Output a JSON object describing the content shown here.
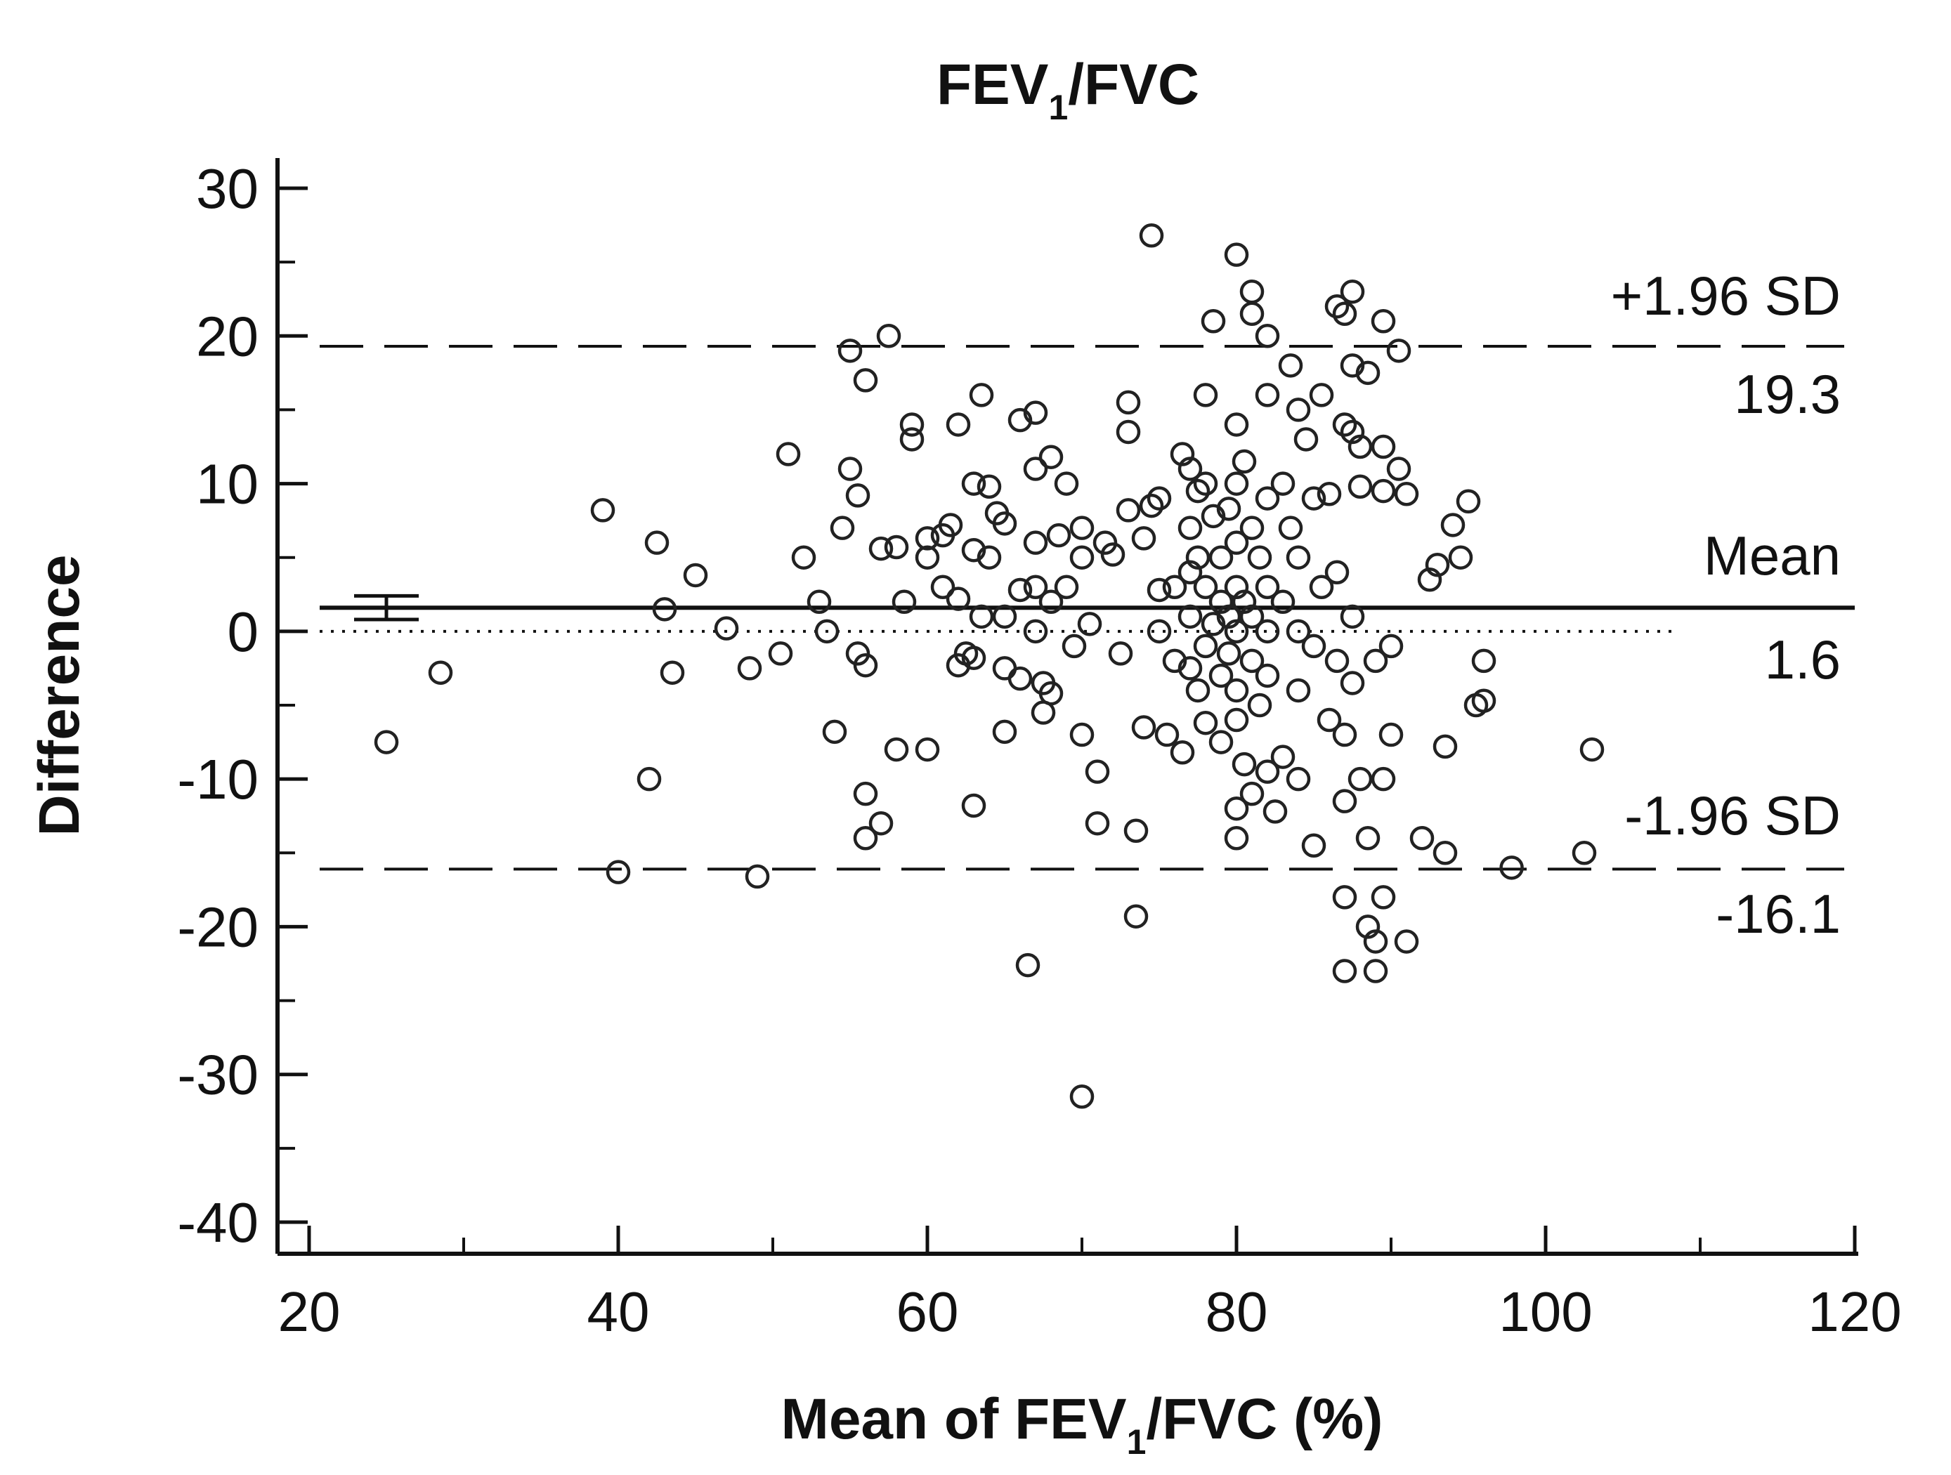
{
  "chart_data": {
    "type": "scatter",
    "title": {
      "base": "FEV",
      "sub": "1",
      "rest": "/FVC"
    },
    "xlabel": {
      "base": "Mean of FEV",
      "sub": "1",
      "rest": "/FVC (%)"
    },
    "ylabel": "Difference",
    "xlim": [
      20,
      120
    ],
    "ylim": [
      -40,
      30
    ],
    "xticks": [
      20,
      40,
      60,
      80,
      100,
      120
    ],
    "yticks": [
      -40,
      -30,
      -20,
      -10,
      0,
      10,
      20,
      30
    ],
    "grid": false,
    "reference_lines": {
      "mean": {
        "value": 1.6,
        "label": "Mean",
        "value_label": "1.6",
        "style": "solid"
      },
      "upper_loa": {
        "value": 19.3,
        "label": "+1.96 SD",
        "value_label": "19.3",
        "style": "dashed"
      },
      "lower_loa": {
        "value": -16.1,
        "label": "-1.96 SD",
        "value_label": "-16.1",
        "style": "dashed"
      },
      "zero": {
        "value": 0,
        "style": "dotted"
      }
    },
    "mean_ci": {
      "x": 25,
      "lower": 0.8,
      "upper": 2.4
    },
    "points": [
      [
        25,
        -7.5
      ],
      [
        28.5,
        -2.8
      ],
      [
        39,
        8.2
      ],
      [
        40,
        -16.3
      ],
      [
        42,
        -10
      ],
      [
        42.5,
        6
      ],
      [
        43,
        1.5
      ],
      [
        43.5,
        -2.8
      ],
      [
        45,
        3.8
      ],
      [
        47,
        0.2
      ],
      [
        48.5,
        -2.5
      ],
      [
        49,
        -16.6
      ],
      [
        50.5,
        -1.5
      ],
      [
        51,
        12
      ],
      [
        52,
        5
      ],
      [
        53,
        2
      ],
      [
        53.5,
        0
      ],
      [
        54,
        -6.8
      ],
      [
        54.5,
        7
      ],
      [
        55,
        11
      ],
      [
        55,
        19
      ],
      [
        55.5,
        9.2
      ],
      [
        55.5,
        -1.5
      ],
      [
        56,
        -2.3
      ],
      [
        56,
        -11
      ],
      [
        56,
        -14
      ],
      [
        56,
        17
      ],
      [
        57,
        5.6
      ],
      [
        57,
        -13
      ],
      [
        57.5,
        20
      ],
      [
        58,
        5.7
      ],
      [
        58,
        -8
      ],
      [
        58.5,
        2
      ],
      [
        59,
        14
      ],
      [
        59,
        13
      ],
      [
        60,
        -8
      ],
      [
        60,
        5
      ],
      [
        60,
        6.3
      ],
      [
        61,
        6.5
      ],
      [
        61,
        3
      ],
      [
        61.5,
        7.2
      ],
      [
        62,
        14
      ],
      [
        62,
        2.2
      ],
      [
        62,
        -2.3
      ],
      [
        62.5,
        -1.5
      ],
      [
        63,
        10
      ],
      [
        63,
        5.5
      ],
      [
        63,
        -11.8
      ],
      [
        63,
        -1.8
      ],
      [
        63.5,
        16
      ],
      [
        63.5,
        1
      ],
      [
        64,
        9.8
      ],
      [
        64,
        5
      ],
      [
        64.5,
        8
      ],
      [
        65,
        1
      ],
      [
        65,
        7.3
      ],
      [
        65,
        -2.5
      ],
      [
        65,
        -6.8
      ],
      [
        66,
        14.3
      ],
      [
        66,
        2.8
      ],
      [
        66,
        -3.2
      ],
      [
        66.5,
        -22.6
      ],
      [
        67,
        14.8
      ],
      [
        67,
        11
      ],
      [
        67,
        6
      ],
      [
        67,
        3
      ],
      [
        67,
        0
      ],
      [
        67.5,
        -3.5
      ],
      [
        67.5,
        -5.5
      ],
      [
        68,
        11.8
      ],
      [
        68,
        2
      ],
      [
        68,
        -4.2
      ],
      [
        68.5,
        6.5
      ],
      [
        69,
        10
      ],
      [
        69,
        3
      ],
      [
        69.5,
        -1
      ],
      [
        70,
        -7
      ],
      [
        70,
        7
      ],
      [
        70,
        5
      ],
      [
        70,
        -31.5
      ],
      [
        70.5,
        0.5
      ],
      [
        71,
        -9.5
      ],
      [
        71,
        -13
      ],
      [
        71.5,
        6
      ],
      [
        72,
        5.2
      ],
      [
        72.5,
        -1.5
      ],
      [
        73,
        15.5
      ],
      [
        73,
        8.2
      ],
      [
        73,
        13.5
      ],
      [
        73.5,
        -13.5
      ],
      [
        73.5,
        -19.3
      ],
      [
        74,
        -6.5
      ],
      [
        74,
        6.3
      ],
      [
        74.5,
        8.5
      ],
      [
        74.5,
        26.8
      ],
      [
        75,
        9
      ],
      [
        75,
        2.8
      ],
      [
        75,
        0
      ],
      [
        75.5,
        -7
      ],
      [
        76,
        3
      ],
      [
        76,
        -2
      ],
      [
        76.5,
        12
      ],
      [
        76.5,
        -8.2
      ],
      [
        77,
        11
      ],
      [
        77,
        7
      ],
      [
        77,
        4
      ],
      [
        77,
        1
      ],
      [
        77,
        -2.5
      ],
      [
        77.5,
        9.5
      ],
      [
        77.5,
        5
      ],
      [
        77.5,
        -4
      ],
      [
        78,
        16
      ],
      [
        78,
        10
      ],
      [
        78,
        3
      ],
      [
        78,
        -1
      ],
      [
        78,
        -6.2
      ],
      [
        78.5,
        21
      ],
      [
        78.5,
        7.8
      ],
      [
        78.5,
        0.5
      ],
      [
        79,
        5
      ],
      [
        79,
        2
      ],
      [
        79,
        -3
      ],
      [
        79,
        -7.5
      ],
      [
        79.5,
        8.3
      ],
      [
        79.5,
        1
      ],
      [
        79.5,
        -1.5
      ],
      [
        80,
        14
      ],
      [
        80,
        10
      ],
      [
        80,
        6
      ],
      [
        80,
        3
      ],
      [
        80,
        0
      ],
      [
        80,
        -4
      ],
      [
        80,
        -6
      ],
      [
        80,
        -12
      ],
      [
        80,
        -14
      ],
      [
        80,
        25.5
      ],
      [
        80.5,
        11.5
      ],
      [
        80.5,
        2
      ],
      [
        80.5,
        -9
      ],
      [
        81,
        21.5
      ],
      [
        81,
        23
      ],
      [
        81,
        7
      ],
      [
        81,
        1
      ],
      [
        81,
        -2
      ],
      [
        81,
        -11
      ],
      [
        81.5,
        5
      ],
      [
        81.5,
        -5
      ],
      [
        82,
        20
      ],
      [
        82,
        16
      ],
      [
        82,
        9
      ],
      [
        82,
        3
      ],
      [
        82,
        0
      ],
      [
        82,
        -3
      ],
      [
        82,
        -9.5
      ],
      [
        82.5,
        -12.2
      ],
      [
        83,
        10
      ],
      [
        83,
        2
      ],
      [
        83,
        -8.5
      ],
      [
        83.5,
        18
      ],
      [
        83.5,
        7
      ],
      [
        84,
        15
      ],
      [
        84,
        5
      ],
      [
        84,
        0
      ],
      [
        84,
        -4
      ],
      [
        84,
        -10
      ],
      [
        84.5,
        13
      ],
      [
        85,
        9
      ],
      [
        85,
        -1
      ],
      [
        85,
        -14.5
      ],
      [
        85.5,
        16
      ],
      [
        85.5,
        3
      ],
      [
        86,
        -6
      ],
      [
        86,
        9.3
      ],
      [
        86.5,
        22
      ],
      [
        86.5,
        4
      ],
      [
        86.5,
        -2
      ],
      [
        87,
        21.5
      ],
      [
        87,
        14
      ],
      [
        87,
        -11.5
      ],
      [
        87,
        -7
      ],
      [
        87,
        -18
      ],
      [
        87,
        -23
      ],
      [
        87.5,
        23
      ],
      [
        87.5,
        18
      ],
      [
        87.5,
        13.5
      ],
      [
        87.5,
        1
      ],
      [
        87.5,
        -3.5
      ],
      [
        88,
        12.5
      ],
      [
        88,
        9.8
      ],
      [
        88,
        -10
      ],
      [
        88.5,
        17.5
      ],
      [
        88.5,
        -14
      ],
      [
        88.5,
        -20
      ],
      [
        89,
        -21
      ],
      [
        89,
        -23
      ],
      [
        89,
        -2
      ],
      [
        89.5,
        9.5
      ],
      [
        89.5,
        21
      ],
      [
        89.5,
        12.5
      ],
      [
        89.5,
        -10
      ],
      [
        89.5,
        -18
      ],
      [
        90,
        -7
      ],
      [
        90,
        -1
      ],
      [
        90.5,
        11
      ],
      [
        90.5,
        19
      ],
      [
        91,
        9.3
      ],
      [
        91,
        -21
      ],
      [
        92,
        -14
      ],
      [
        92.5,
        3.5
      ],
      [
        93,
        4.5
      ],
      [
        93.5,
        -15
      ],
      [
        93.5,
        -7.8
      ],
      [
        94,
        7.2
      ],
      [
        94.5,
        5
      ],
      [
        95,
        8.8
      ],
      [
        95.5,
        -5
      ],
      [
        96,
        -2
      ],
      [
        96,
        -4.7
      ],
      [
        97.8,
        -16
      ],
      [
        102.5,
        -15
      ],
      [
        103,
        -8
      ]
    ]
  }
}
